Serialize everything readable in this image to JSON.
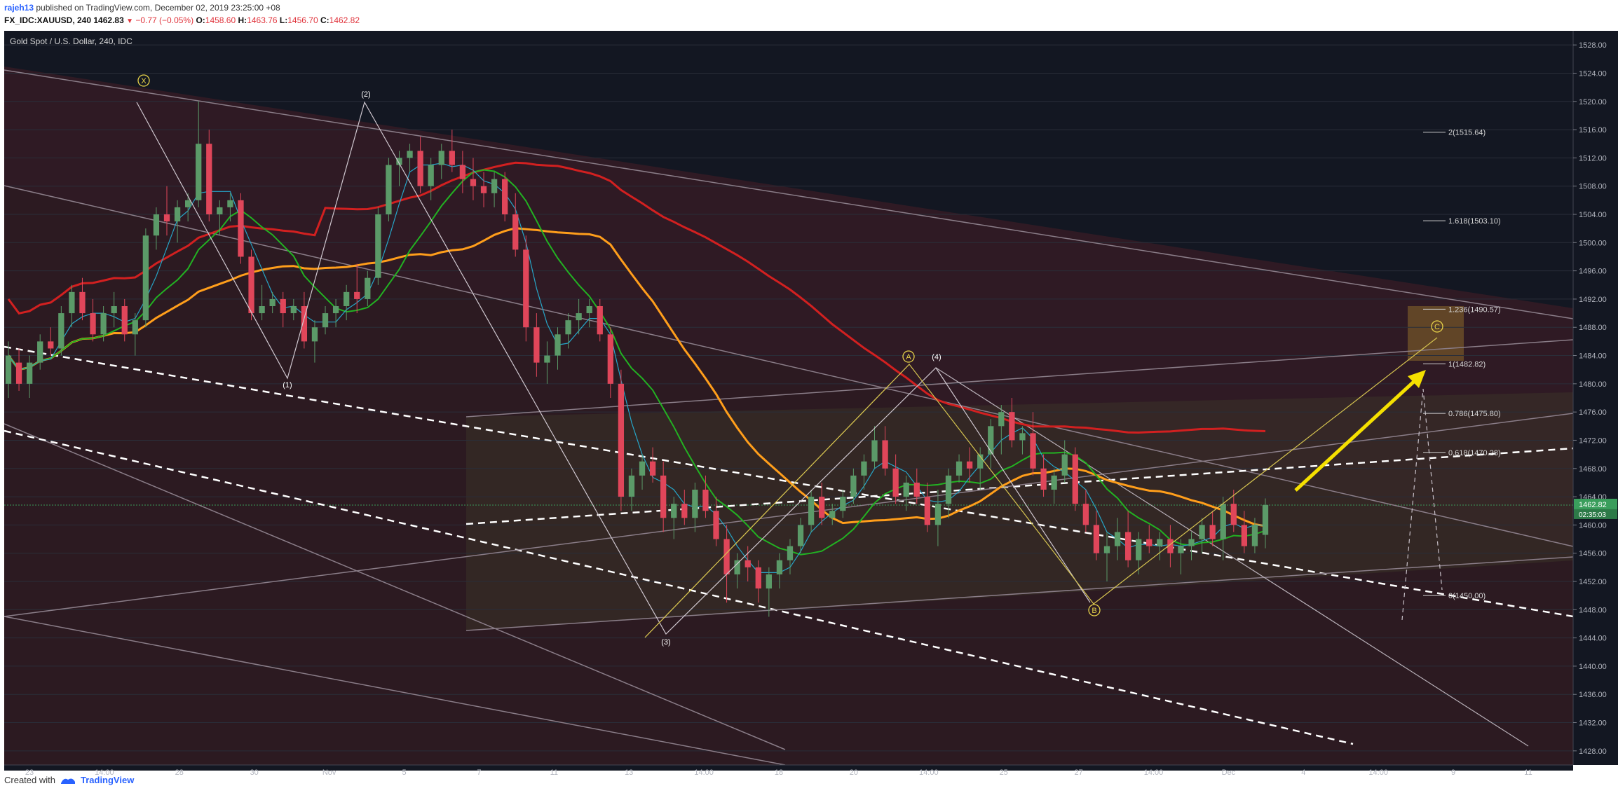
{
  "header": {
    "author": "rajeh13",
    "published": "published on TradingView.com, December 02, 2019 23:25:00 +08",
    "symbol": "FX_IDC:XAUUSD, 240",
    "last": "1462.83",
    "change": "−0.77 (−0.05%)",
    "o_label": "O:",
    "o_value": "1458.60",
    "h_label": "H:",
    "h_value": "1463.76",
    "l_label": "L:",
    "l_value": "1456.70",
    "c_label": "C:",
    "c_value": "1462.82"
  },
  "legend": "Gold Spot / U.S. Dollar, 240, IDC",
  "footer": {
    "created_with": "Created with",
    "brand": "TradingView"
  },
  "colors": {
    "background": "#131722",
    "up": "#5b9a68",
    "down": "#e0465a",
    "ma_fast": "#26a6c8",
    "ma_green": "#22b222",
    "ma_orange": "#ff9e1b",
    "ma_red": "#d22020",
    "projection_arrow": "#f5e000",
    "price_tag": "#3a9e5c"
  },
  "chart_data": {
    "type": "candlestick",
    "title": "Gold Spot / U.S. Dollar, 240, IDC",
    "ylim": [
      1426,
      1530
    ],
    "y_ticks": [
      1428,
      1432,
      1436,
      1440,
      1444,
      1448,
      1452,
      1456,
      1460,
      1464,
      1468,
      1472,
      1476,
      1480,
      1484,
      1488,
      1492,
      1496,
      1500,
      1504,
      1508,
      1512,
      1516,
      1520,
      1524,
      1528
    ],
    "x_tick_labels": [
      "23",
      "14:00",
      "28",
      "30",
      "Nov",
      "5",
      "7",
      "11",
      "13",
      "14:00",
      "18",
      "20",
      "14:00",
      "25",
      "27",
      "14:00",
      "Dec",
      "4",
      "14:00",
      "9",
      "11"
    ],
    "last_price_label": "1462.82",
    "countdown_label": "02:35:03",
    "wave_labels": [
      "X",
      "(2)",
      "(1)",
      "(3)",
      "A",
      "(4)",
      "B",
      "C"
    ],
    "fib_levels": [
      {
        "label": "2(1515.64)",
        "value": 1515.64
      },
      {
        "label": "1.618(1503.10)",
        "value": 1503.1
      },
      {
        "label": "1.236(1490.57)",
        "value": 1490.57
      },
      {
        "label": "1(1482.82)",
        "value": 1482.82
      },
      {
        "label": "0.786(1475.80)",
        "value": 1475.8
      },
      {
        "label": "0.618(1470.28)",
        "value": 1470.28
      },
      {
        "label": "0(1450.00)",
        "value": 1450.0
      }
    ],
    "candles": [
      [
        1480,
        1486,
        1478,
        1484
      ],
      [
        1483,
        1485,
        1479,
        1480
      ],
      [
        1480,
        1484,
        1478,
        1483
      ],
      [
        1483,
        1487,
        1482,
        1486
      ],
      [
        1486,
        1488,
        1484,
        1485
      ],
      [
        1485,
        1491,
        1484,
        1490
      ],
      [
        1490,
        1494,
        1488,
        1493
      ],
      [
        1493,
        1495,
        1489,
        1490
      ],
      [
        1490,
        1492,
        1486,
        1487
      ],
      [
        1487,
        1491,
        1486,
        1490
      ],
      [
        1490,
        1493,
        1488,
        1491
      ],
      [
        1491,
        1492,
        1486,
        1487
      ],
      [
        1487,
        1490,
        1484,
        1489
      ],
      [
        1489,
        1502,
        1488,
        1501
      ],
      [
        1501,
        1505,
        1499,
        1504
      ],
      [
        1504,
        1508,
        1501,
        1503
      ],
      [
        1503,
        1506,
        1500,
        1505
      ],
      [
        1505,
        1507,
        1503,
        1506
      ],
      [
        1506,
        1520,
        1505,
        1514
      ],
      [
        1514,
        1516,
        1503,
        1504
      ],
      [
        1504,
        1506,
        1501,
        1505
      ],
      [
        1505,
        1507,
        1503,
        1506
      ],
      [
        1506,
        1507,
        1497,
        1498
      ],
      [
        1498,
        1499,
        1489,
        1490
      ],
      [
        1490,
        1494,
        1489,
        1491
      ],
      [
        1491,
        1493,
        1490,
        1492
      ],
      [
        1492,
        1493,
        1488,
        1490
      ],
      [
        1490,
        1492,
        1489,
        1491
      ],
      [
        1491,
        1493,
        1485,
        1486
      ],
      [
        1486,
        1489,
        1483,
        1488
      ],
      [
        1488,
        1491,
        1487,
        1490
      ],
      [
        1490,
        1492,
        1488,
        1491
      ],
      [
        1491,
        1494,
        1489,
        1493
      ],
      [
        1493,
        1497,
        1490,
        1492
      ],
      [
        1492,
        1496,
        1491,
        1495
      ],
      [
        1495,
        1505,
        1494,
        1504
      ],
      [
        1504,
        1512,
        1503,
        1511
      ],
      [
        1511,
        1513,
        1508,
        1512
      ],
      [
        1512,
        1514,
        1510,
        1513
      ],
      [
        1513,
        1515,
        1507,
        1508
      ],
      [
        1508,
        1512,
        1506,
        1511
      ],
      [
        1511,
        1514,
        1509,
        1513
      ],
      [
        1513,
        1516,
        1510,
        1511
      ],
      [
        1511,
        1513,
        1507,
        1509
      ],
      [
        1509,
        1512,
        1506,
        1508
      ],
      [
        1508,
        1510,
        1505,
        1507
      ],
      [
        1507,
        1510,
        1505,
        1509
      ],
      [
        1509,
        1510,
        1503,
        1504
      ],
      [
        1504,
        1507,
        1498,
        1499
      ],
      [
        1499,
        1501,
        1486,
        1488
      ],
      [
        1488,
        1490,
        1481,
        1483
      ],
      [
        1483,
        1486,
        1480,
        1484
      ],
      [
        1484,
        1488,
        1482,
        1487
      ],
      [
        1487,
        1490,
        1485,
        1489
      ],
      [
        1489,
        1492,
        1487,
        1490
      ],
      [
        1490,
        1492,
        1488,
        1491
      ],
      [
        1491,
        1492,
        1486,
        1487
      ],
      [
        1487,
        1488,
        1478,
        1480
      ],
      [
        1480,
        1482,
        1462,
        1464
      ],
      [
        1464,
        1468,
        1462,
        1467
      ],
      [
        1467,
        1470,
        1465,
        1469
      ],
      [
        1469,
        1471,
        1466,
        1467
      ],
      [
        1467,
        1469,
        1459,
        1461
      ],
      [
        1461,
        1464,
        1458,
        1463
      ],
      [
        1463,
        1465,
        1460,
        1461
      ],
      [
        1461,
        1466,
        1459,
        1465
      ],
      [
        1465,
        1467,
        1461,
        1462
      ],
      [
        1462,
        1464,
        1457,
        1458
      ],
      [
        1458,
        1460,
        1449,
        1453
      ],
      [
        1453,
        1456,
        1451,
        1455
      ],
      [
        1455,
        1457,
        1452,
        1454
      ],
      [
        1454,
        1455,
        1449,
        1451
      ],
      [
        1451,
        1454,
        1447,
        1453
      ],
      [
        1453,
        1456,
        1451,
        1455
      ],
      [
        1455,
        1458,
        1453,
        1457
      ],
      [
        1457,
        1461,
        1456,
        1460
      ],
      [
        1460,
        1465,
        1459,
        1464
      ],
      [
        1464,
        1466,
        1460,
        1461
      ],
      [
        1461,
        1463,
        1460,
        1462
      ],
      [
        1462,
        1465,
        1461,
        1464
      ],
      [
        1464,
        1468,
        1463,
        1467
      ],
      [
        1467,
        1470,
        1465,
        1469
      ],
      [
        1469,
        1474,
        1468,
        1472
      ],
      [
        1472,
        1474,
        1467,
        1468
      ],
      [
        1468,
        1470,
        1463,
        1464
      ],
      [
        1464,
        1467,
        1462,
        1466
      ],
      [
        1466,
        1468,
        1463,
        1464
      ],
      [
        1464,
        1466,
        1459,
        1460
      ],
      [
        1460,
        1465,
        1457,
        1463
      ],
      [
        1463,
        1468,
        1461,
        1467
      ],
      [
        1467,
        1470,
        1466,
        1469
      ],
      [
        1469,
        1471,
        1466,
        1468
      ],
      [
        1468,
        1471,
        1465,
        1470
      ],
      [
        1470,
        1475,
        1468,
        1474
      ],
      [
        1474,
        1477,
        1470,
        1476
      ],
      [
        1476,
        1478,
        1471,
        1472
      ],
      [
        1472,
        1474,
        1470,
        1473
      ],
      [
        1473,
        1476,
        1467,
        1468
      ],
      [
        1468,
        1470,
        1464,
        1465
      ],
      [
        1465,
        1468,
        1463,
        1467
      ],
      [
        1467,
        1472,
        1466,
        1470
      ],
      [
        1470,
        1471,
        1462,
        1463
      ],
      [
        1463,
        1465,
        1459,
        1460
      ],
      [
        1460,
        1462,
        1455,
        1456
      ],
      [
        1456,
        1459,
        1452,
        1457
      ],
      [
        1457,
        1461,
        1455,
        1459
      ],
      [
        1459,
        1462,
        1454,
        1455
      ],
      [
        1455,
        1459,
        1453,
        1458
      ],
      [
        1458,
        1460,
        1456,
        1457
      ],
      [
        1457,
        1459,
        1455,
        1458
      ],
      [
        1458,
        1460,
        1454,
        1456
      ],
      [
        1456,
        1458,
        1453,
        1457
      ],
      [
        1457,
        1459,
        1455,
        1458
      ],
      [
        1458,
        1461,
        1456,
        1460
      ],
      [
        1460,
        1462,
        1457,
        1458
      ],
      [
        1458,
        1464,
        1455,
        1463
      ],
      [
        1463,
        1465,
        1459,
        1460
      ],
      [
        1460,
        1462,
        1456,
        1457
      ],
      [
        1457,
        1461,
        1456,
        1460
      ],
      [
        1458.6,
        1463.76,
        1456.7,
        1462.82
      ]
    ]
  }
}
